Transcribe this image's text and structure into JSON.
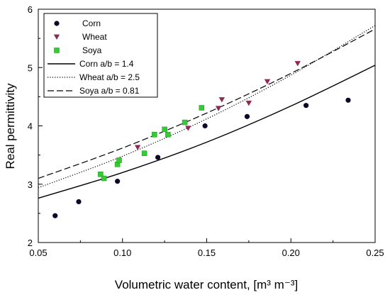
{
  "chart_data": {
    "type": "scatter",
    "xlabel": "Volumetric water content, [m³ m⁻³]",
    "ylabel": "Real permittivity",
    "xlim": [
      0.05,
      0.25
    ],
    "ylim": [
      2,
      6
    ],
    "x_ticks": [
      "0.05",
      "0.10",
      "0.15",
      "0.20",
      "0.25"
    ],
    "y_ticks": [
      "2",
      "3",
      "4",
      "5",
      "6"
    ],
    "grid": false,
    "legend_position": "top-left",
    "series": [
      {
        "name": "Corn",
        "kind": "points",
        "marker": "circle",
        "color": "#0a0a28",
        "points": [
          [
            0.06,
            2.46
          ],
          [
            0.074,
            2.7
          ],
          [
            0.097,
            3.05
          ],
          [
            0.121,
            3.46
          ],
          [
            0.149,
            4.0
          ],
          [
            0.174,
            4.16
          ],
          [
            0.209,
            4.35
          ],
          [
            0.234,
            4.44
          ]
        ]
      },
      {
        "name": "Wheat",
        "kind": "points",
        "marker": "triangle-down",
        "color": "#8b2a55",
        "points": [
          [
            0.109,
            3.63
          ],
          [
            0.139,
            3.96
          ],
          [
            0.157,
            4.3
          ],
          [
            0.159,
            4.45
          ],
          [
            0.175,
            4.39
          ],
          [
            0.186,
            4.76
          ],
          [
            0.204,
            5.07
          ]
        ]
      },
      {
        "name": "Soya",
        "kind": "points",
        "marker": "square",
        "color": "#33cc33",
        "points": [
          [
            0.087,
            3.17
          ],
          [
            0.089,
            3.1
          ],
          [
            0.097,
            3.34
          ],
          [
            0.098,
            3.41
          ],
          [
            0.113,
            3.53
          ],
          [
            0.119,
            3.85
          ],
          [
            0.125,
            3.94
          ],
          [
            0.127,
            3.85
          ],
          [
            0.137,
            4.06
          ],
          [
            0.147,
            4.31
          ]
        ]
      },
      {
        "name": "Corn a/b = 1.4",
        "kind": "line",
        "style": "solid",
        "color": "#000000",
        "x": [
          0.05,
          0.1,
          0.15,
          0.2,
          0.25
        ],
        "y": [
          2.76,
          3.2,
          3.72,
          4.34,
          5.04
        ]
      },
      {
        "name": "Wheat a/b = 2.5",
        "kind": "line",
        "style": "dotted",
        "color": "#000000",
        "x": [
          0.05,
          0.1,
          0.15,
          0.2,
          0.25
        ],
        "y": [
          2.94,
          3.48,
          4.12,
          4.87,
          5.72
        ]
      },
      {
        "name": "Soya a/b = 0.81",
        "kind": "line",
        "style": "dashed",
        "color": "#000000",
        "x": [
          0.05,
          0.1,
          0.15,
          0.2,
          0.25
        ],
        "y": [
          3.1,
          3.62,
          4.22,
          4.9,
          5.66
        ]
      }
    ]
  }
}
